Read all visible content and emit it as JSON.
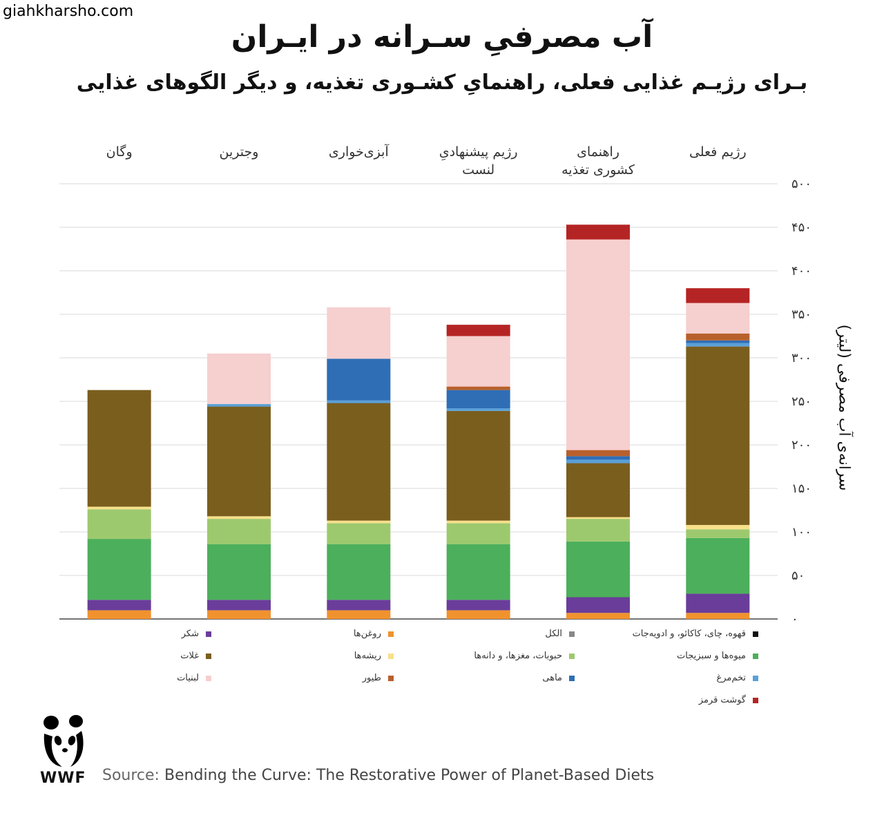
{
  "watermark": "giahkharsho.com",
  "title": "آب مصرفیِ سـرانه در ایـران",
  "subtitle": "بـرای رژیـم غذایی فعلی، راهنمایِ کشـوری تغذیه، و دیگر الگوهای غذایی",
  "source_label": "Source:",
  "source_text": "Bending the Curve: The Restorative Power of Planet-Based Diets",
  "logo_text": "WWF",
  "chart_data": {
    "type": "bar",
    "stacked": true,
    "ylabel": "سرانه‌ی آب مصرفی (لیتر)",
    "ylim": [
      0,
      500
    ],
    "yticks": [
      "۰",
      "۵۰",
      "۱۰۰",
      "۱۵۰",
      "۲۰۰",
      "۲۵۰",
      "۳۰۰",
      "۳۵۰",
      "۴۰۰",
      "۴۵۰",
      "۵۰۰"
    ],
    "grid": true,
    "categories": [
      [
        "رژیم فعلی"
      ],
      [
        "راهنمای",
        "کشوری تغذیه"
      ],
      [
        "رژیم پیشنهادیِ",
        "لنست"
      ],
      [
        "آبزی‌خواری"
      ],
      [
        "وجترین"
      ],
      [
        "وگان"
      ]
    ],
    "series": [
      {
        "name": "روغن‌ها",
        "color": "#f0922e",
        "values": [
          7,
          7,
          10,
          10,
          10,
          10
        ]
      },
      {
        "name": "شکر",
        "color": "#6a3d9a",
        "values": [
          22,
          18,
          12,
          12,
          12,
          12
        ]
      },
      {
        "name": "میوه‌ها و سبزیجات",
        "color": "#4caf5b",
        "values": [
          64,
          64,
          64,
          64,
          64,
          70
        ]
      },
      {
        "name": "حبوبات، مغزها، و دانه‌ها",
        "color": "#9dc96e",
        "values": [
          10,
          26,
          24,
          24,
          29,
          34
        ]
      },
      {
        "name": "ریشه‌ها",
        "color": "#f7e08a",
        "values": [
          5,
          2,
          3,
          3,
          3,
          3
        ]
      },
      {
        "name": "غلات",
        "color": "#7a5e1e",
        "values": [
          205,
          62,
          126,
          135,
          126,
          134
        ]
      },
      {
        "name": "تخم‌مرغ",
        "color": "#5aa0d8",
        "values": [
          4,
          4,
          3,
          3,
          3,
          0
        ]
      },
      {
        "name": "ماهی",
        "color": "#2f6eb5",
        "values": [
          3,
          4,
          21,
          48,
          0,
          0
        ]
      },
      {
        "name": "طیور",
        "color": "#b8602c",
        "values": [
          8,
          7,
          4,
          0,
          0,
          0
        ]
      },
      {
        "name": "لبنیات",
        "color": "#f6cfcf",
        "values": [
          35,
          242,
          58,
          59,
          58,
          0
        ]
      },
      {
        "name": "گوشت قرمز",
        "color": "#b52424",
        "values": [
          17,
          17,
          13,
          0,
          0,
          0
        ]
      },
      {
        "name": "قهوه، چای، کاکائو، و ادویه‌جات",
        "color": "#111111",
        "values": [
          0,
          0,
          0,
          0,
          0,
          0
        ]
      },
      {
        "name": "الکل",
        "color": "#888888",
        "values": [
          0,
          0,
          0,
          0,
          0,
          0
        ]
      }
    ]
  },
  "legend": {
    "col1": [
      {
        "label": "قهوه، چای، کاکائو، و ادویه‌جات",
        "color": "#111111"
      },
      {
        "label": "میوه‌ها و سبزیجات",
        "color": "#4caf5b"
      },
      {
        "label": "تخم‌مرغ",
        "color": "#5aa0d8"
      },
      {
        "label": "گوشت قرمز",
        "color": "#b52424"
      }
    ],
    "col2": [
      {
        "label": "الکل",
        "color": "#888888"
      },
      {
        "label": "حبوبات، مغزها، و دانه‌ها",
        "color": "#9dc96e"
      },
      {
        "label": "ماهی",
        "color": "#2f6eb5"
      }
    ],
    "col3": [
      {
        "label": "روغن‌ها",
        "color": "#f0922e"
      },
      {
        "label": "ریشه‌ها",
        "color": "#f7e08a"
      },
      {
        "label": "طیور",
        "color": "#b8602c"
      }
    ],
    "col4": [
      {
        "label": "شکر",
        "color": "#6a3d9a"
      },
      {
        "label": "غلات",
        "color": "#7a5e1e"
      },
      {
        "label": "لبنیات",
        "color": "#f6cfcf"
      }
    ]
  }
}
